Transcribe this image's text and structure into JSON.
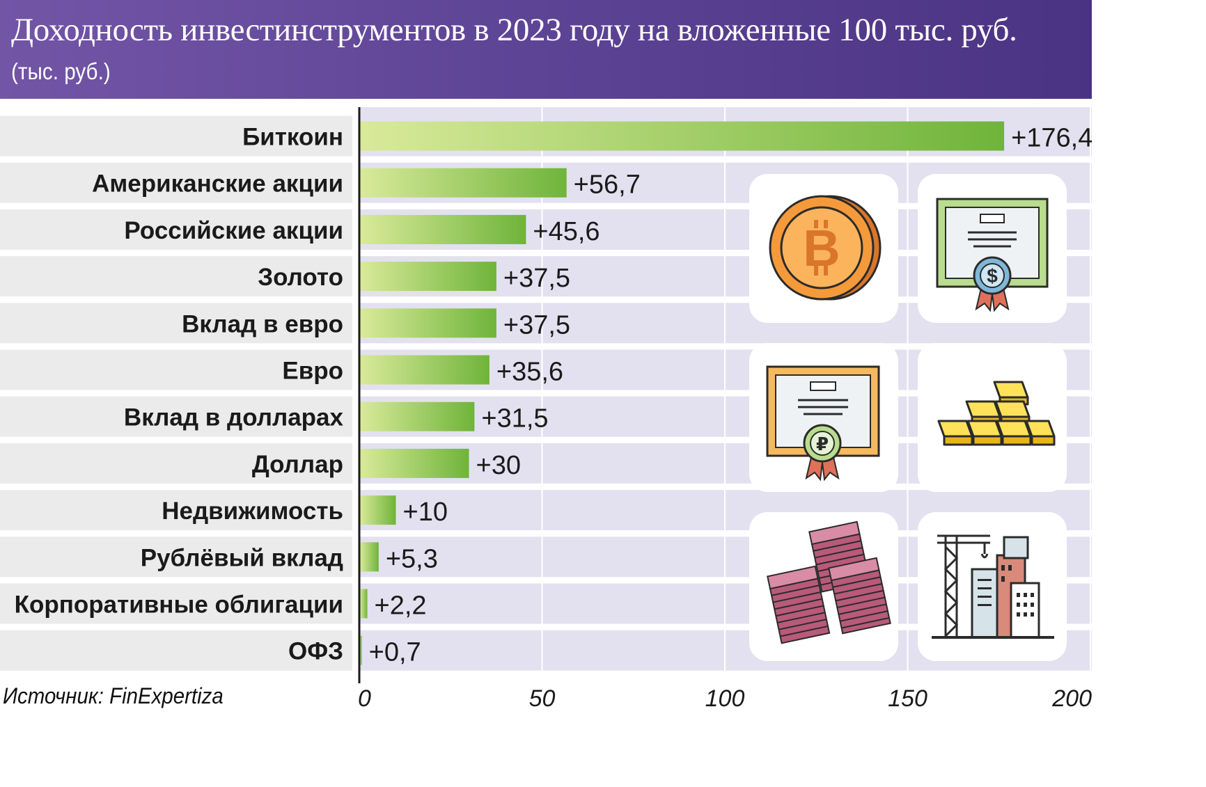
{
  "header": {
    "title": "Доходность инвестинструментов в 2023 году на вложенные 100 тыс. руб.",
    "subtitle": "(тыс. руб.)"
  },
  "source": "Источник: FinExpertiza",
  "colors": {
    "header_start": "#7355a6",
    "header_end": "#4b3383",
    "bar_start": "#d9ea9a",
    "bar_end": "#6fb43a",
    "plot_background": "#e3e1ef",
    "row_band": "#ebebeb"
  },
  "icons": [
    "bitcoin-coin-icon",
    "dollar-certificate-icon",
    "ruble-certificate-icon",
    "gold-bars-icon",
    "euro-banknote-stacks-icon",
    "construction-buildings-icon"
  ],
  "chart_data": {
    "type": "bar",
    "orientation": "horizontal",
    "categories": [
      "Биткоин",
      "Американские акции",
      "Российские акции",
      "Золото",
      "Вклад в евро",
      "Евро",
      "Вклад в долларах",
      "Доллар",
      "Недвижимость",
      "Рублёвый вклад",
      "Корпоративные облигации",
      "ОФЗ"
    ],
    "values": [
      176.4,
      56.7,
      45.6,
      37.5,
      37.5,
      35.6,
      31.5,
      30,
      10,
      5.3,
      2.2,
      0.7
    ],
    "value_labels": [
      "+176,4",
      "+56,7",
      "+45,6",
      "+37,5",
      "+37,5",
      "+35,6",
      "+31,5",
      "+30",
      "+10",
      "+5,3",
      "+2,2",
      "+0,7"
    ],
    "xlim": [
      0,
      200
    ],
    "xticks": [
      0,
      50,
      100,
      150,
      200
    ],
    "xtick_labels": [
      "0",
      "50",
      "100",
      "150",
      "200"
    ],
    "grid": true
  }
}
